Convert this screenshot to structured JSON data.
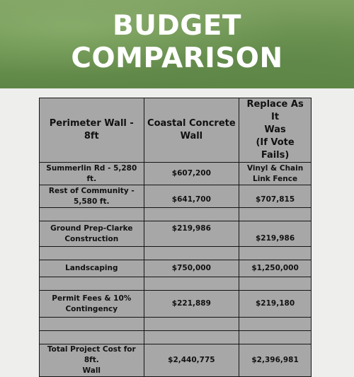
{
  "title": {
    "line1": "BUDGET",
    "line2": "COMPARISON"
  },
  "table": {
    "headers": {
      "col1": "Perimeter Wall - 8ft",
      "col2_line1": "Coastal Concrete",
      "col2_line2": "Wall",
      "col3_line1": "Replace As It",
      "col3_line2": "Was",
      "col3_line3": "(If Vote Fails)"
    },
    "rows": [
      {
        "label_line1": "Summerlin Rd - 5,280 ft.",
        "label_line2": "",
        "coastal": "$607,200",
        "replace_line1": "Vinyl & Chain",
        "replace_line2": "Link Fence"
      },
      {
        "label_line1": "Rest of Community -",
        "label_line2": "5,580 ft.",
        "coastal": "$641,700",
        "replace_line1": "$707,815",
        "replace_line2": ""
      },
      {
        "label_line1": "Ground Prep-Clarke",
        "label_line2": "Construction",
        "coastal": "$219,986",
        "replace_line1": "$219,986",
        "replace_line2": ""
      },
      {
        "label_line1": "Landscaping",
        "label_line2": "",
        "coastal": "$750,000",
        "replace_line1": "$1,250,000",
        "replace_line2": ""
      },
      {
        "label_line1": "Permit Fees & 10%",
        "label_line2": "Contingency",
        "coastal": "$221,889",
        "replace_line1": "$219,180",
        "replace_line2": ""
      },
      {
        "label_line1": "Total Project Cost for 8ft.",
        "label_line2": "Wall",
        "coastal": "$2,440,775",
        "replace_line1": "$2,396,981",
        "replace_line2": ""
      }
    ]
  }
}
